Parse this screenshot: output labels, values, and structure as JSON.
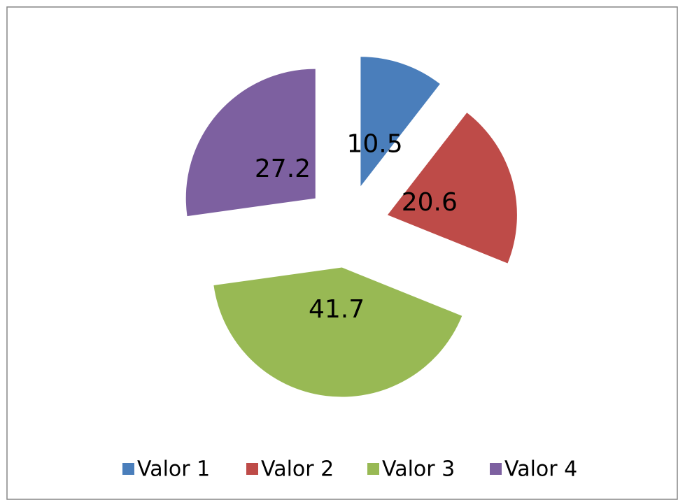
{
  "chart_data": {
    "type": "pie",
    "categories": [
      "Valor 1",
      "Valor 2",
      "Valor 3",
      "Valor 4"
    ],
    "values": [
      10.5,
      20.6,
      41.7,
      27.2
    ],
    "colors": [
      "#4a7ebb",
      "#be4b48",
      "#98b954",
      "#7d60a0"
    ],
    "exploded": true,
    "legend": "bottom"
  }
}
